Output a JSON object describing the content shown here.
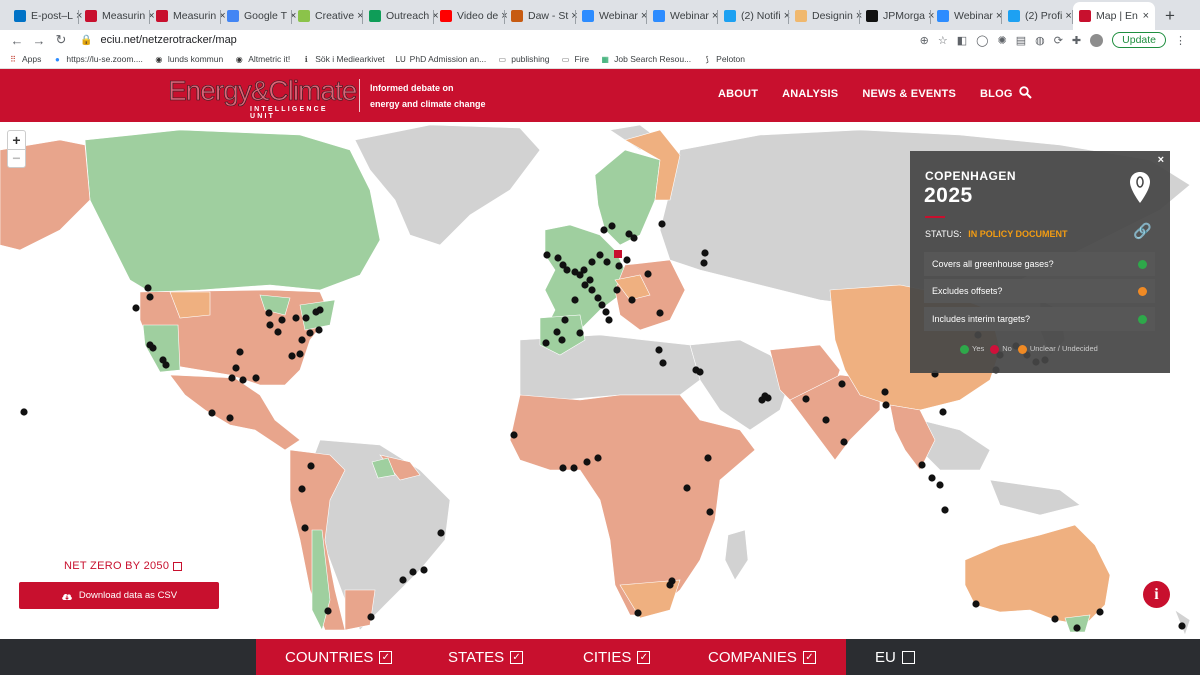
{
  "browser": {
    "tabs": [
      {
        "title": "E-post–L",
        "icon": "outlook-icon",
        "color": "#0072c6"
      },
      {
        "title": "Measurin",
        "icon": "iop-icon",
        "color": "#c8102e"
      },
      {
        "title": "Measurin",
        "icon": "iop-icon",
        "color": "#c8102e"
      },
      {
        "title": "Google T",
        "icon": "google-translate-icon",
        "color": "#4285f4"
      },
      {
        "title": "Creative",
        "icon": "creative-icon",
        "color": "#8bc34a"
      },
      {
        "title": "Outreach",
        "icon": "sheets-icon",
        "color": "#0f9d58"
      },
      {
        "title": "Video de",
        "icon": "youtube-icon",
        "color": "#ff0000"
      },
      {
        "title": "Daw - St",
        "icon": "daw-icon",
        "color": "#c75b12"
      },
      {
        "title": "Webinar",
        "icon": "zoom-icon",
        "color": "#2d8cff"
      },
      {
        "title": "Webinar",
        "icon": "zoom-icon",
        "color": "#2d8cff"
      },
      {
        "title": "(2) Notifi",
        "icon": "twitter-icon",
        "color": "#1da1f2"
      },
      {
        "title": "Designin",
        "icon": "designing-icon",
        "color": "#f0b86e"
      },
      {
        "title": "JPMorga",
        "icon": "bloomberg-icon",
        "color": "#111111"
      },
      {
        "title": "Webinar",
        "icon": "zoom-icon",
        "color": "#2d8cff"
      },
      {
        "title": "(2) Profi",
        "icon": "twitter-icon",
        "color": "#1da1f2"
      },
      {
        "title": "Map | En",
        "icon": "eciu-icon",
        "color": "#c8102e",
        "active": true
      }
    ],
    "url": "eciu.net/netzerotracker/map",
    "update_label": "Update",
    "bookmarks": [
      {
        "label": "Apps",
        "icon": "apps-icon"
      },
      {
        "label": "https://lu-se.zoom....",
        "icon": "zoom-icon"
      },
      {
        "label": "lunds kommun",
        "icon": "globe-icon"
      },
      {
        "label": "Altmetric it!",
        "icon": "globe-icon"
      },
      {
        "label": "Sök i Mediearkivet",
        "icon": "mediearkivet-icon"
      },
      {
        "label": "PhD Admission an...",
        "icon": "lu-icon"
      },
      {
        "label": "publishing",
        "icon": "folder-icon"
      },
      {
        "label": "Fire",
        "icon": "folder-icon"
      },
      {
        "label": "Job Search Resou...",
        "icon": "sheets-icon"
      },
      {
        "label": "Peloton",
        "icon": "peloton-icon"
      }
    ]
  },
  "site": {
    "logo_main": "Energy&Climate",
    "logo_sub": "INTELLIGENCE UNIT",
    "tagline_1": "Informed debate on",
    "tagline_2": "energy and climate change",
    "nav": [
      "ABOUT",
      "ANALYSIS",
      "NEWS & EVENTS",
      "BLOG"
    ]
  },
  "popup": {
    "city": "COPENHAGEN",
    "year": "2025",
    "status_label": "STATUS:",
    "status_value": "IN POLICY DOCUMENT",
    "criteria": [
      {
        "label": "Covers all greenhouse gases?",
        "answer": "yes",
        "color": "#2ea84a"
      },
      {
        "label": "Excludes offsets?",
        "answer": "unclear",
        "color": "#f08a24"
      },
      {
        "label": "Includes interim targets?",
        "answer": "yes",
        "color": "#2ea84a"
      }
    ],
    "legend": [
      {
        "label": "Yes",
        "color": "#2ea84a"
      },
      {
        "label": "No",
        "color": "#d0103a"
      },
      {
        "label": "Unclear / Undecided",
        "color": "#f08a24"
      }
    ]
  },
  "controls": {
    "net_zero_label": "NET ZERO BY 2050",
    "download_label": "Download data as CSV",
    "zoom_in": "+",
    "zoom_out": "−",
    "info": "i"
  },
  "filters": [
    {
      "label": "COUNTRIES",
      "checked": true
    },
    {
      "label": "STATES",
      "checked": true
    },
    {
      "label": "CITIES",
      "checked": true
    },
    {
      "label": "COMPANIES",
      "checked": true
    },
    {
      "label": "EU",
      "checked": false
    }
  ],
  "map_colors": {
    "green": "#9fcf9f",
    "orange": "#efb080",
    "salmon": "#e8a58c",
    "grey": "#d2d2d2",
    "city_dot": "#111111",
    "highlight_city": "#c8102e"
  }
}
